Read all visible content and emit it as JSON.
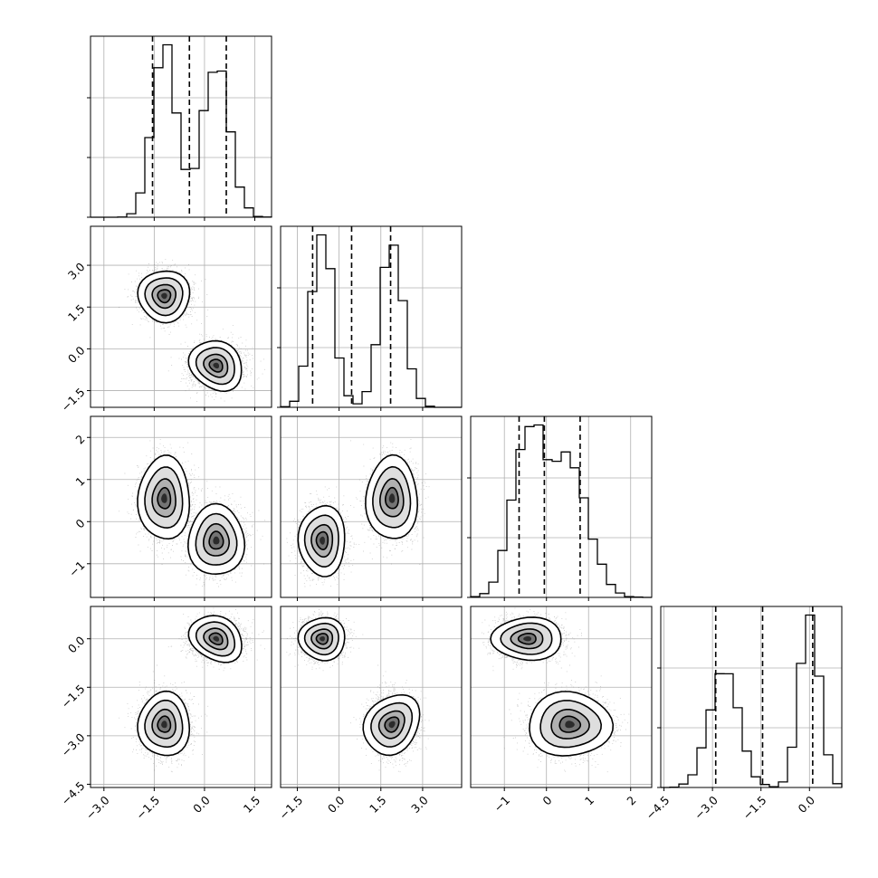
{
  "chart_data": {
    "type": "corner",
    "title": "",
    "parameters": [
      "",
      "",
      "",
      ""
    ],
    "grid": true,
    "quantile_lines": "dashed",
    "colors": {
      "line": "#000000",
      "grid": "#b0b0b0",
      "points": "#6e6e6e",
      "fill_dark": "#000000",
      "fill_light": "#ffffff"
    },
    "axis_ranges": [
      [
        -3.4,
        2.0
      ],
      [
        -2.1,
        4.4
      ],
      [
        -1.8,
        2.5
      ],
      [
        -4.6,
        1.0
      ]
    ],
    "ticks": [
      {
        "values": [
          -3.0,
          -1.5,
          0.0,
          1.5
        ],
        "labels": [
          "−3.0",
          "−1.5",
          "0.0",
          "1.5"
        ]
      },
      {
        "values": [
          -1.5,
          0.0,
          1.5,
          3.0
        ],
        "labels": [
          "−1.5",
          "0.0",
          "1.5",
          "3.0"
        ]
      },
      {
        "values": [
          -1,
          0,
          1,
          2
        ],
        "labels": [
          "−1",
          "0",
          "1",
          "2"
        ]
      },
      {
        "values": [
          -4.5,
          -3.0,
          -1.5,
          0.0
        ],
        "labels": [
          "−4.5",
          "−3.0",
          "−1.5",
          "0.0"
        ]
      }
    ],
    "clusters": [
      {
        "weight": 0.5,
        "mean": [
          -1.2,
          1.9,
          0.55,
          -2.65
        ],
        "sd": [
          0.35,
          0.42,
          0.45,
          0.45
        ]
      },
      {
        "weight": 0.5,
        "mean": [
          0.35,
          -0.6,
          -0.45,
          0.0
        ],
        "sd": [
          0.38,
          0.38,
          0.38,
          0.3
        ]
      }
    ],
    "marginals": [
      {
        "quantiles": [
          -1.55,
          -0.45,
          0.65
        ]
      },
      {
        "quantiles": [
          -0.95,
          0.45,
          1.85
        ]
      },
      {
        "quantiles": [
          -0.65,
          -0.05,
          0.8
        ]
      },
      {
        "quantiles": [
          -2.9,
          -1.45,
          0.1
        ]
      }
    ],
    "pairs": [
      {
        "row": 1,
        "col": 0,
        "contour_centers": [
          [
            -1.2,
            1.9
          ],
          [
            0.35,
            -0.6
          ]
        ]
      },
      {
        "row": 2,
        "col": 0,
        "contour_centers": [
          [
            -1.2,
            0.55
          ],
          [
            0.35,
            -0.45
          ]
        ]
      },
      {
        "row": 2,
        "col": 1,
        "contour_centers": [
          [
            1.9,
            0.55
          ],
          [
            -0.6,
            -0.45
          ]
        ]
      },
      {
        "row": 3,
        "col": 0,
        "contour_centers": [
          [
            -1.2,
            -2.65
          ],
          [
            0.35,
            0.0
          ]
        ]
      },
      {
        "row": 3,
        "col": 1,
        "contour_centers": [
          [
            1.9,
            -2.65
          ],
          [
            -0.6,
            0.0
          ]
        ]
      },
      {
        "row": 3,
        "col": 2,
        "contour_centers": [
          [
            0.55,
            -2.65
          ],
          [
            -0.45,
            0.0
          ]
        ]
      }
    ]
  }
}
